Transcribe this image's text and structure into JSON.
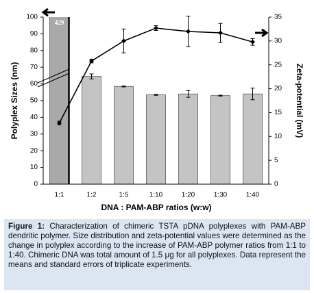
{
  "chart_data": {
    "type": "combo",
    "categories": [
      "1:1",
      "1:2",
      "1:5",
      "1:10",
      "1:20",
      "1:30",
      "1:40"
    ],
    "xlabel": "DNA : PAM-ABP ratios (w:w)",
    "ylabel": "Polyplex Sizes (nm)",
    "y2label": "Zeta-potential (mV)",
    "ylim": [
      0,
      100
    ],
    "yticks": [
      0,
      10,
      20,
      30,
      40,
      50,
      60,
      70,
      80,
      90,
      100
    ],
    "y2lim": [
      0,
      35
    ],
    "y2ticks": [
      0,
      5,
      10,
      15,
      20,
      25,
      30,
      35
    ],
    "series": [
      {
        "type": "bar",
        "color": "#c4c4c4",
        "values": [
          429,
          64.5,
          58.5,
          53.5,
          54,
          53,
          54
        ],
        "value_labels": [
          "429",
          null,
          null,
          null,
          null,
          null,
          null
        ],
        "errors": [
          0,
          1.5,
          0.3,
          0.3,
          2,
          0.3,
          3.5
        ]
      },
      {
        "type": "line",
        "axis": "y2",
        "color": "#000000",
        "values": [
          12.8,
          25.8,
          30.0,
          32.7,
          32.0,
          31.7,
          29.8
        ],
        "errors": [
          0.4,
          0.4,
          2.5,
          0.5,
          3.2,
          2.0,
          0.7
        ]
      }
    ]
  },
  "caption": {
    "label": "Figure 1:",
    "text": " Characterization of chimeric TSTA pDNA polyplexes with PAM-ABP dendritic polymer. Size distribution and zeta-potential values were determined as the change in polyplex according to the increase of PAM-ABP polymer ratios from 1:1 to 1:40. Chimeric DNA was total amount of 1.5 μg for all polyplexes. Data represent the means and standard errors of triplicate experiments."
  }
}
